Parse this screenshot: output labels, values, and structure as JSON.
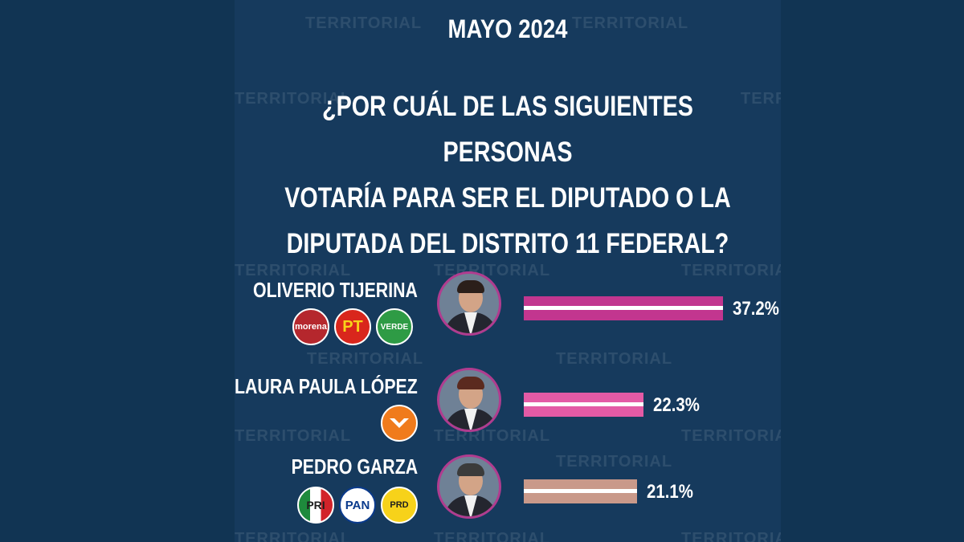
{
  "header": {
    "month": "MAYO 2024",
    "question_lines": [
      "¿POR CUÁL DE LAS SIGUIENTES PERSONAS",
      "VOTARÍA PARA SER EL DIPUTADO O LA",
      "DIPUTADA DEL DISTRITO 11 FEDERAL?"
    ]
  },
  "watermark": "TERRITORIAL",
  "colors": {
    "background": "#113453",
    "bar_oliverio": "#c2368f",
    "bar_laura": "#e35aa5",
    "bar_pedro": "#c9998a",
    "photo_ring": "#b03c8f"
  },
  "candidates": [
    {
      "name": "OLIVERIO TIJERINA",
      "value": 37.2,
      "value_label": "37.2%",
      "parties": [
        {
          "label": "morena",
          "color": "#b5272d",
          "icon": "morena-logo-icon"
        },
        {
          "label": "PT",
          "color": "#d9261c",
          "icon": "pt-logo-icon"
        },
        {
          "label": "VERDE",
          "color": "#2e9b45",
          "icon": "verde-logo-icon"
        }
      ]
    },
    {
      "name": "LAURA PAULA LÓPEZ",
      "value": 22.3,
      "value_label": "22.3%",
      "parties": [
        {
          "label": "",
          "color": "#f07b1c",
          "icon": "movimiento-ciudadano-logo-icon"
        }
      ]
    },
    {
      "name": "PEDRO GARZA",
      "value": 21.1,
      "value_label": "21.1%",
      "parties": [
        {
          "label": "PRI",
          "color": "#ffffff",
          "icon": "pri-logo-icon"
        },
        {
          "label": "PAN",
          "color": "#ffffff",
          "icon": "pan-logo-icon"
        },
        {
          "label": "PRD",
          "color": "#f7d21a",
          "icon": "prd-logo-icon"
        }
      ]
    }
  ],
  "chart_data": {
    "type": "bar",
    "categories": [
      "OLIVERIO TIJERINA",
      "LAURA PAULA LÓPEZ",
      "PEDRO GARZA"
    ],
    "values": [
      37.2,
      22.3,
      21.1
    ],
    "value_labels": [
      "37.2%",
      "22.3%",
      "21.1%"
    ],
    "title": "¿POR CUÁL DE LAS SIGUIENTES PERSONAS VOTARÍA PARA SER EL DIPUTADO O LA DIPUTADA DEL DISTRITO 11 FEDERAL?",
    "subtitle": "MAYO 2024",
    "xlabel": "",
    "ylabel": "",
    "orientation": "horizontal",
    "grid": false,
    "legend": "none"
  }
}
